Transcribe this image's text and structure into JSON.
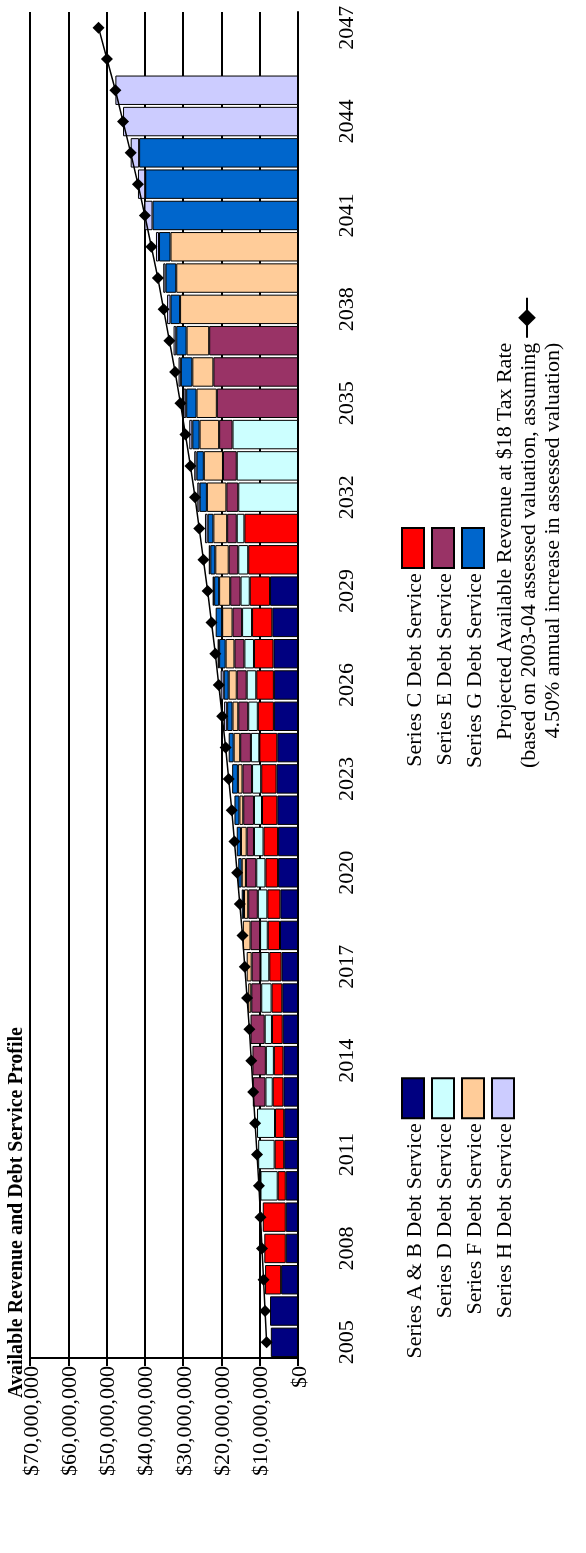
{
  "chart_data": {
    "type": "bar",
    "title": "Available Revenue and Debt Service Profile",
    "orientation": "horizontal",
    "stacked": true,
    "grid": "x",
    "legend": "right",
    "marker": "diamond",
    "categories": [
      "2047",
      null,
      null,
      "2044",
      null,
      null,
      "2041",
      null,
      null,
      "2038",
      null,
      null,
      "2035",
      null,
      null,
      "2032",
      null,
      null,
      "2029",
      null,
      null,
      "2026",
      null,
      null,
      "2023",
      null,
      null,
      "2020",
      null,
      null,
      "2017",
      null,
      null,
      "2014",
      null,
      null,
      "2011",
      null,
      null,
      "2008",
      null,
      null,
      "2005"
    ],
    "xlim": [
      70000000,
      0
    ],
    "xticks": [
      {
        "value": 70000000,
        "label": "$70,000,000"
      },
      {
        "value": 60000000,
        "label": "$60,000,000"
      },
      {
        "value": 50000000,
        "label": "$50,000,000"
      },
      {
        "value": 40000000,
        "label": "$40,000,000"
      },
      {
        "value": 30000000,
        "label": "$30,000,000"
      },
      {
        "value": 20000000,
        "label": "$20,000,000"
      },
      {
        "value": 10000000,
        "label": "$10,000,000"
      },
      {
        "value": 0,
        "label": "$0"
      }
    ],
    "series": [
      {
        "name": "Series A & B Debt Service",
        "color": "#000080",
        "values": [
          null,
          null,
          null,
          null,
          null,
          null,
          null,
          null,
          null,
          null,
          null,
          null,
          null,
          null,
          null,
          null,
          null,
          null,
          7300000,
          6700000,
          6400000,
          6300000,
          6300000,
          5400000,
          5600000,
          5400000,
          5200000,
          5200000,
          4600000,
          4700000,
          4300000,
          4100000,
          4000000,
          3800000,
          3800000,
          3600000,
          3600000,
          3200000,
          3200000,
          3200000,
          4400000,
          7300000,
          7100000
        ]
      },
      {
        "name": "Series C Debt Service",
        "color": "#ff0000",
        "values": [
          null,
          null,
          null,
          null,
          null,
          null,
          null,
          null,
          null,
          null,
          null,
          null,
          null,
          null,
          null,
          null,
          14000000,
          13000000,
          5300000,
          5300000,
          5100000,
          4600000,
          4200000,
          4700000,
          4000000,
          4000000,
          3800000,
          3300000,
          3400000,
          3200000,
          3200000,
          2800000,
          2800000,
          2500000,
          2800000,
          2400000,
          2500000,
          2100000,
          6000000,
          5600000,
          4200000,
          null,
          null
        ]
      },
      {
        "name": "Series D Debt Service",
        "color": "#ccffff",
        "values": [
          null,
          null,
          null,
          null,
          null,
          null,
          null,
          null,
          null,
          null,
          null,
          null,
          null,
          17100000,
          16000000,
          15600000,
          2000000,
          2600000,
          2400000,
          2600000,
          2500000,
          2500000,
          2500000,
          2200000,
          2400000,
          2100000,
          2500000,
          2400000,
          2500000,
          2000000,
          2300000,
          2700000,
          1900000,
          2100000,
          1900000,
          4700000,
          4300000,
          4500000,
          null,
          null,
          null,
          null,
          null
        ]
      },
      {
        "name": "Series E Debt Service",
        "color": "#993366",
        "values": [
          null,
          null,
          null,
          null,
          null,
          null,
          null,
          null,
          null,
          null,
          23200000,
          22100000,
          21200000,
          3500000,
          3600000,
          3100000,
          2500000,
          2500000,
          2700000,
          2500000,
          2600000,
          2600000,
          2600000,
          2800000,
          2500000,
          2800000,
          1900000,
          2700000,
          2500000,
          2500000,
          2300000,
          2600000,
          3700000,
          3500000,
          3300000,
          null,
          null,
          null,
          null,
          null,
          null,
          null,
          null
        ]
      },
      {
        "name": "Series F Debt Service",
        "color": "#ffcc99",
        "values": [
          null,
          null,
          null,
          null,
          null,
          null,
          null,
          33300000,
          31800000,
          30800000,
          5900000,
          5500000,
          5300000,
          5100000,
          5000000,
          5100000,
          3600000,
          3500000,
          2900000,
          2700000,
          2300000,
          2100000,
          1500000,
          1700000,
          1200000,
          1000000,
          1500000,
          1100000,
          1100000,
          2000000,
          1300000,
          800000,
          null,
          null,
          null,
          null,
          null,
          null,
          null,
          null,
          null,
          null,
          null
        ]
      },
      {
        "name": "Series G Debt Service",
        "color": "#0066cc",
        "values": [
          null,
          null,
          null,
          null,
          41500000,
          39900000,
          38000000,
          3000000,
          2800000,
          2500000,
          2700000,
          3000000,
          2700000,
          1900000,
          1900000,
          1900000,
          1500000,
          1300000,
          1300000,
          1700000,
          1700000,
          1300000,
          1400000,
          1300000,
          1500000,
          1300000,
          1100000,
          900000,
          600000,
          null,
          null,
          null,
          null,
          null,
          null,
          null,
          null,
          null,
          null,
          null,
          null,
          null,
          null
        ]
      },
      {
        "name": "Series H Debt Service",
        "color": "#ccccff",
        "values": [
          null,
          null,
          47700000,
          45700000,
          2200000,
          1900000,
          2100000,
          800000,
          600000,
          900000,
          700000,
          600000,
          700000,
          800000,
          600000,
          600000,
          700000,
          400000,
          400000,
          null,
          400000,
          800000,
          800000,
          null,
          null,
          null,
          null,
          null,
          null,
          null,
          null,
          null,
          null,
          null,
          null,
          null,
          null,
          null,
          null,
          null,
          null,
          null,
          null
        ]
      },
      {
        "name": "Projected Available Revenue at $18 Tax Rate\n(based on 2003-04 assessed valuation, assuming\n4.50% annual increase in assessed valuation)",
        "type": "line",
        "color": "#000000",
        "values": [
          52100000,
          49900000,
          47700000,
          45700000,
          43700000,
          41800000,
          40000000,
          38300000,
          36600000,
          35100000,
          33600000,
          32100000,
          30700000,
          29400000,
          28100000,
          26900000,
          25800000,
          24700000,
          23600000,
          22600000,
          21600000,
          20700000,
          19800000,
          18900000,
          18100000,
          17300000,
          16600000,
          15900000,
          15200000,
          14500000,
          13900000,
          13300000,
          12700000,
          12200000,
          11700000,
          11200000,
          10700000,
          10200000,
          9800000,
          9400000,
          9000000,
          8600000,
          8200000
        ]
      }
    ]
  }
}
